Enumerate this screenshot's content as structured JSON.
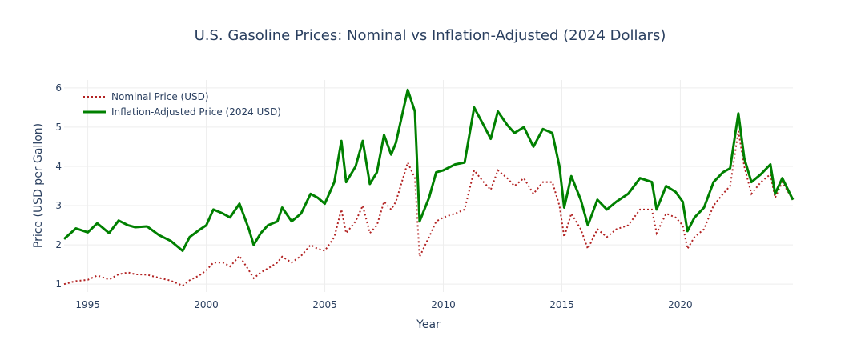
{
  "chart_data": {
    "type": "line",
    "title": "U.S. Gasoline Prices: Nominal vs Inflation-Adjusted (2024 Dollars)",
    "xlabel": "Year",
    "ylabel": "Price (USD per Gallon)",
    "xlim": [
      1994.0,
      2024.75
    ],
    "ylim": [
      0.8,
      6.2
    ],
    "xticks": [
      1995,
      2000,
      2005,
      2010,
      2015,
      2020
    ],
    "yticks": [
      1,
      2,
      3,
      4,
      5,
      6
    ],
    "grid": true,
    "legend_position": "top-left",
    "series": [
      {
        "name": "Nominal Price (USD)",
        "color": "#b22222",
        "dash": "dotted",
        "points": [
          [
            1994.0,
            1.0
          ],
          [
            1994.5,
            1.08
          ],
          [
            1995.0,
            1.11
          ],
          [
            1995.4,
            1.22
          ],
          [
            1995.9,
            1.12
          ],
          [
            1996.3,
            1.25
          ],
          [
            1996.7,
            1.3
          ],
          [
            1997.0,
            1.25
          ],
          [
            1997.5,
            1.24
          ],
          [
            1998.0,
            1.16
          ],
          [
            1998.5,
            1.09
          ],
          [
            1999.0,
            0.96
          ],
          [
            1999.3,
            1.1
          ],
          [
            1999.7,
            1.22
          ],
          [
            2000.0,
            1.35
          ],
          [
            2000.3,
            1.55
          ],
          [
            2000.7,
            1.55
          ],
          [
            2001.0,
            1.45
          ],
          [
            2001.4,
            1.72
          ],
          [
            2001.8,
            1.35
          ],
          [
            2002.0,
            1.15
          ],
          [
            2002.3,
            1.3
          ],
          [
            2002.6,
            1.4
          ],
          [
            2003.0,
            1.55
          ],
          [
            2003.2,
            1.7
          ],
          [
            2003.6,
            1.55
          ],
          [
            2004.0,
            1.72
          ],
          [
            2004.4,
            2.0
          ],
          [
            2004.7,
            1.9
          ],
          [
            2005.0,
            1.85
          ],
          [
            2005.4,
            2.2
          ],
          [
            2005.7,
            2.9
          ],
          [
            2005.9,
            2.3
          ],
          [
            2006.3,
            2.6
          ],
          [
            2006.6,
            3.0
          ],
          [
            2006.9,
            2.3
          ],
          [
            2007.2,
            2.5
          ],
          [
            2007.5,
            3.1
          ],
          [
            2007.8,
            2.9
          ],
          [
            2008.0,
            3.1
          ],
          [
            2008.5,
            4.1
          ],
          [
            2008.8,
            3.7
          ],
          [
            2009.0,
            1.7
          ],
          [
            2009.4,
            2.2
          ],
          [
            2009.7,
            2.6
          ],
          [
            2010.0,
            2.7
          ],
          [
            2010.5,
            2.8
          ],
          [
            2010.9,
            2.9
          ],
          [
            2011.3,
            3.9
          ],
          [
            2011.7,
            3.6
          ],
          [
            2012.0,
            3.4
          ],
          [
            2012.3,
            3.9
          ],
          [
            2012.7,
            3.7
          ],
          [
            2013.0,
            3.5
          ],
          [
            2013.4,
            3.7
          ],
          [
            2013.8,
            3.3
          ],
          [
            2014.2,
            3.6
          ],
          [
            2014.6,
            3.6
          ],
          [
            2014.9,
            3.0
          ],
          [
            2015.1,
            2.2
          ],
          [
            2015.4,
            2.8
          ],
          [
            2015.8,
            2.4
          ],
          [
            2016.1,
            1.9
          ],
          [
            2016.5,
            2.4
          ],
          [
            2016.9,
            2.2
          ],
          [
            2017.3,
            2.4
          ],
          [
            2017.8,
            2.5
          ],
          [
            2018.3,
            2.9
          ],
          [
            2018.8,
            2.9
          ],
          [
            2019.0,
            2.3
          ],
          [
            2019.4,
            2.8
          ],
          [
            2019.8,
            2.7
          ],
          [
            2020.1,
            2.5
          ],
          [
            2020.3,
            1.9
          ],
          [
            2020.6,
            2.2
          ],
          [
            2021.0,
            2.4
          ],
          [
            2021.4,
            3.0
          ],
          [
            2021.8,
            3.3
          ],
          [
            2022.1,
            3.5
          ],
          [
            2022.45,
            4.9
          ],
          [
            2022.7,
            4.0
          ],
          [
            2023.0,
            3.3
          ],
          [
            2023.4,
            3.6
          ],
          [
            2023.8,
            3.8
          ],
          [
            2024.0,
            3.2
          ],
          [
            2024.3,
            3.6
          ],
          [
            2024.75,
            3.15
          ]
        ]
      },
      {
        "name": "Inflation-Adjusted Price (2024 USD)",
        "color": "#008000",
        "dash": "solid",
        "points": [
          [
            1994.0,
            2.15
          ],
          [
            1994.5,
            2.42
          ],
          [
            1995.0,
            2.32
          ],
          [
            1995.4,
            2.55
          ],
          [
            1995.9,
            2.3
          ],
          [
            1996.3,
            2.62
          ],
          [
            1996.7,
            2.5
          ],
          [
            1997.0,
            2.45
          ],
          [
            1997.5,
            2.47
          ],
          [
            1998.0,
            2.25
          ],
          [
            1998.5,
            2.1
          ],
          [
            1999.0,
            1.85
          ],
          [
            1999.3,
            2.2
          ],
          [
            1999.7,
            2.38
          ],
          [
            2000.0,
            2.5
          ],
          [
            2000.3,
            2.9
          ],
          [
            2000.7,
            2.8
          ],
          [
            2001.0,
            2.7
          ],
          [
            2001.4,
            3.05
          ],
          [
            2001.8,
            2.4
          ],
          [
            2002.0,
            2.0
          ],
          [
            2002.3,
            2.3
          ],
          [
            2002.6,
            2.5
          ],
          [
            2003.0,
            2.6
          ],
          [
            2003.2,
            2.95
          ],
          [
            2003.6,
            2.6
          ],
          [
            2004.0,
            2.8
          ],
          [
            2004.4,
            3.3
          ],
          [
            2004.7,
            3.2
          ],
          [
            2005.0,
            3.05
          ],
          [
            2005.4,
            3.6
          ],
          [
            2005.7,
            4.65
          ],
          [
            2005.9,
            3.6
          ],
          [
            2006.3,
            4.0
          ],
          [
            2006.6,
            4.65
          ],
          [
            2006.9,
            3.55
          ],
          [
            2007.2,
            3.85
          ],
          [
            2007.5,
            4.8
          ],
          [
            2007.8,
            4.3
          ],
          [
            2008.0,
            4.6
          ],
          [
            2008.5,
            5.95
          ],
          [
            2008.8,
            5.4
          ],
          [
            2009.0,
            2.6
          ],
          [
            2009.4,
            3.2
          ],
          [
            2009.7,
            3.85
          ],
          [
            2010.0,
            3.9
          ],
          [
            2010.5,
            4.05
          ],
          [
            2010.9,
            4.1
          ],
          [
            2011.3,
            5.5
          ],
          [
            2011.7,
            5.05
          ],
          [
            2012.0,
            4.7
          ],
          [
            2012.3,
            5.4
          ],
          [
            2012.7,
            5.05
          ],
          [
            2013.0,
            4.85
          ],
          [
            2013.4,
            5.0
          ],
          [
            2013.8,
            4.5
          ],
          [
            2014.2,
            4.95
          ],
          [
            2014.6,
            4.85
          ],
          [
            2014.9,
            4.0
          ],
          [
            2015.1,
            2.95
          ],
          [
            2015.4,
            3.75
          ],
          [
            2015.8,
            3.15
          ],
          [
            2016.1,
            2.5
          ],
          [
            2016.5,
            3.15
          ],
          [
            2016.9,
            2.9
          ],
          [
            2017.3,
            3.1
          ],
          [
            2017.8,
            3.3
          ],
          [
            2018.3,
            3.7
          ],
          [
            2018.8,
            3.6
          ],
          [
            2019.0,
            2.9
          ],
          [
            2019.4,
            3.5
          ],
          [
            2019.8,
            3.35
          ],
          [
            2020.1,
            3.1
          ],
          [
            2020.3,
            2.35
          ],
          [
            2020.6,
            2.7
          ],
          [
            2021.0,
            2.95
          ],
          [
            2021.4,
            3.6
          ],
          [
            2021.8,
            3.85
          ],
          [
            2022.1,
            3.95
          ],
          [
            2022.45,
            5.35
          ],
          [
            2022.7,
            4.2
          ],
          [
            2023.0,
            3.6
          ],
          [
            2023.4,
            3.8
          ],
          [
            2023.8,
            4.05
          ],
          [
            2024.0,
            3.3
          ],
          [
            2024.3,
            3.7
          ],
          [
            2024.75,
            3.15
          ]
        ]
      }
    ]
  }
}
